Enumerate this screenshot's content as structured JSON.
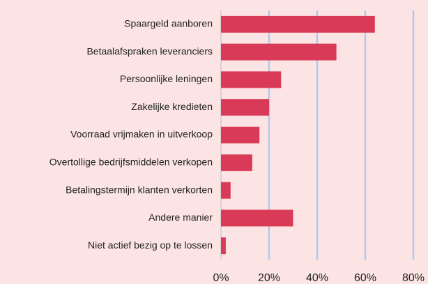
{
  "chart_data": {
    "type": "hbar",
    "categories": [
      "Spaargeld aanboren",
      "Betaalafspraken leveranciers",
      "Persoonlijke leningen",
      "Zakelijke kredieten",
      "Voorraad vrijmaken in uitverkoop",
      "Overtollige bedrijfsmiddelen verkopen",
      "Betalingstermijn klanten verkorten",
      "Andere manier",
      "Niet actief bezig op te lossen"
    ],
    "values": [
      64,
      48,
      25,
      20,
      16,
      13,
      4,
      30,
      2
    ],
    "color": "#d93a57",
    "xlim": [
      0,
      80
    ],
    "xticks": [
      {
        "value": 0,
        "label": "0%"
      },
      {
        "value": 20,
        "label": "20%"
      },
      {
        "value": 40,
        "label": "40%"
      },
      {
        "value": 60,
        "label": "60%"
      },
      {
        "value": 80,
        "label": "80%"
      }
    ],
    "grid": true
  }
}
